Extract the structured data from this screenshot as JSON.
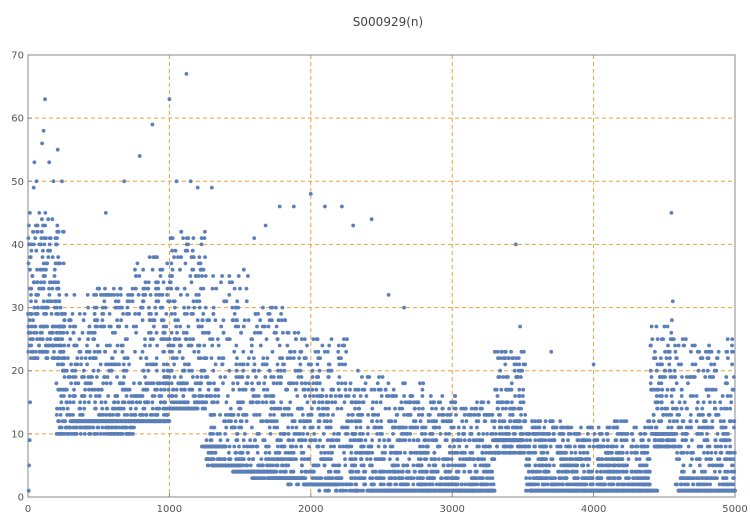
{
  "chart_data": {
    "type": "scatter",
    "title": "S000929(n)",
    "xlabel": "",
    "ylabel": "",
    "xlim": [
      0,
      5000
    ],
    "ylim": [
      0,
      70
    ],
    "x_ticks": [
      0,
      1000,
      2000,
      3000,
      4000,
      5000
    ],
    "y_ticks": [
      0,
      10,
      20,
      30,
      40,
      50,
      60,
      70
    ],
    "x_tick_labels": [
      "0",
      "1000",
      "2000",
      "3000",
      "4000",
      "5000"
    ],
    "y_tick_labels": [
      "0",
      "10",
      "20",
      "30",
      "40",
      "50",
      "60",
      "70"
    ],
    "grid": true,
    "grid_x": [
      1000,
      2000,
      3000,
      4000
    ],
    "grid_y": [
      10,
      20,
      30,
      40,
      50,
      60
    ],
    "colors": {
      "points": "#5b7fb9",
      "grid": "#e8a23a",
      "axis": "#888888"
    },
    "outliers": [
      {
        "x": 5,
        "y": 1
      },
      {
        "x": 8,
        "y": 5
      },
      {
        "x": 12,
        "y": 9
      },
      {
        "x": 15,
        "y": 15
      },
      {
        "x": 20,
        "y": 22
      },
      {
        "x": 25,
        "y": 29
      },
      {
        "x": 30,
        "y": 35
      },
      {
        "x": 35,
        "y": 42
      },
      {
        "x": 40,
        "y": 49
      },
      {
        "x": 45,
        "y": 53
      },
      {
        "x": 60,
        "y": 50
      },
      {
        "x": 80,
        "y": 45
      },
      {
        "x": 100,
        "y": 56
      },
      {
        "x": 110,
        "y": 58
      },
      {
        "x": 120,
        "y": 63
      },
      {
        "x": 150,
        "y": 53
      },
      {
        "x": 180,
        "y": 50
      },
      {
        "x": 210,
        "y": 55
      },
      {
        "x": 240,
        "y": 50
      },
      {
        "x": 550,
        "y": 45
      },
      {
        "x": 680,
        "y": 50
      },
      {
        "x": 790,
        "y": 54
      },
      {
        "x": 880,
        "y": 59
      },
      {
        "x": 1000,
        "y": 63
      },
      {
        "x": 1010,
        "y": 41
      },
      {
        "x": 1050,
        "y": 50
      },
      {
        "x": 1120,
        "y": 67
      },
      {
        "x": 1150,
        "y": 50
      },
      {
        "x": 1200,
        "y": 49
      },
      {
        "x": 1300,
        "y": 49
      },
      {
        "x": 1600,
        "y": 41
      },
      {
        "x": 1680,
        "y": 43
      },
      {
        "x": 1780,
        "y": 46
      },
      {
        "x": 1880,
        "y": 46
      },
      {
        "x": 2000,
        "y": 48
      },
      {
        "x": 2100,
        "y": 46
      },
      {
        "x": 2220,
        "y": 46
      },
      {
        "x": 2300,
        "y": 43
      },
      {
        "x": 2430,
        "y": 44
      },
      {
        "x": 2550,
        "y": 32
      },
      {
        "x": 2660,
        "y": 30
      },
      {
        "x": 3450,
        "y": 40
      },
      {
        "x": 3480,
        "y": 27
      },
      {
        "x": 3700,
        "y": 23
      },
      {
        "x": 4000,
        "y": 21
      },
      {
        "x": 4550,
        "y": 45
      },
      {
        "x": 4560,
        "y": 31
      },
      {
        "x": 4950,
        "y": 22
      }
    ],
    "regimes": [
      {
        "x": [
          0,
          260
        ],
        "ymin": 22,
        "ymax": 45
      },
      {
        "x": [
          200,
          480
        ],
        "ymin": 10,
        "ymax": 32
      },
      {
        "x": [
          480,
          750
        ],
        "ymin": 10,
        "ymax": 33
      },
      {
        "x": [
          750,
          1000
        ],
        "ymin": 12,
        "ymax": 38
      },
      {
        "x": [
          1000,
          1260
        ],
        "ymin": 14,
        "ymax": 42
      },
      {
        "x": [
          1260,
          1560
        ],
        "ymin": 5,
        "ymax": 36
      },
      {
        "x": [
          1560,
          1820
        ],
        "ymin": 3,
        "ymax": 30
      },
      {
        "x": [
          1820,
          2050
        ],
        "ymin": 2,
        "ymax": 26
      },
      {
        "x": [
          2050,
          2260
        ],
        "ymin": 1,
        "ymax": 25
      },
      {
        "x": [
          2260,
          2520
        ],
        "ymin": 1,
        "ymax": 20
      },
      {
        "x": [
          2520,
          2800
        ],
        "ymin": 1,
        "ymax": 18
      },
      {
        "x": [
          2800,
          3050
        ],
        "ymin": 1,
        "ymax": 16
      },
      {
        "x": [
          3050,
          3300
        ],
        "ymin": 1,
        "ymax": 15
      },
      {
        "x": [
          3300,
          3520
        ],
        "ymin": 7,
        "ymax": 23
      },
      {
        "x": [
          3520,
          3800
        ],
        "ymin": 1,
        "ymax": 12
      },
      {
        "x": [
          3800,
          4100
        ],
        "ymin": 1,
        "ymax": 11
      },
      {
        "x": [
          4100,
          4400
        ],
        "ymin": 1,
        "ymax": 12
      },
      {
        "x": [
          4400,
          4580
        ],
        "ymin": 8,
        "ymax": 28
      },
      {
        "x": [
          4580,
          5000
        ],
        "ymin": 1,
        "ymax": 25
      }
    ],
    "bands": [
      {
        "x": [
          300,
          1000
        ],
        "y": 12
      },
      {
        "x": [
          1000,
          1200
        ],
        "y": 14
      },
      {
        "x": [
          1230,
          1400
        ],
        "y": 8
      },
      {
        "x": [
          1300,
          1500
        ],
        "y": 5
      },
      {
        "x": [
          1450,
          1750
        ],
        "y": 4
      },
      {
        "x": [
          1700,
          1950
        ],
        "y": 3
      },
      {
        "x": [
          1950,
          2200
        ],
        "y": 2
      },
      {
        "x": [
          2400,
          3300
        ],
        "y": 1
      },
      {
        "x": [
          3550,
          4450
        ],
        "y": 1
      },
      {
        "x": [
          4600,
          5000
        ],
        "y": 1
      },
      {
        "x": [
          3300,
          3500
        ],
        "y": 9
      },
      {
        "x": [
          4420,
          4580
        ],
        "y": 10
      }
    ]
  }
}
